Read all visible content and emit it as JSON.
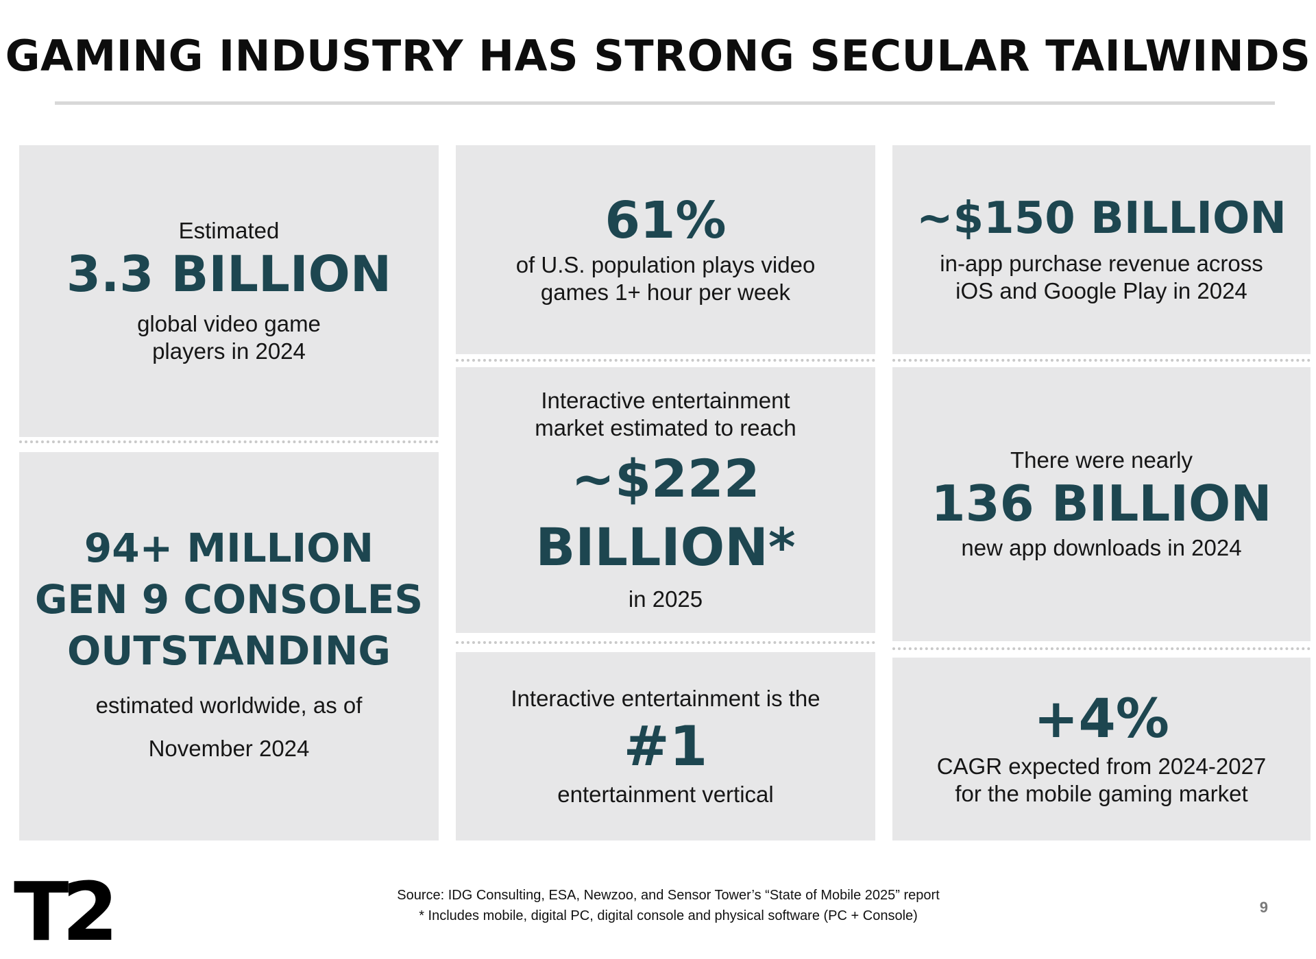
{
  "title": "GAMING INDUSTRY HAS STRONG SECULAR TAILWINDS",
  "tiles": {
    "players": {
      "pre": "Estimated",
      "stat": "3.3 BILLION",
      "post": "global video game\nplayers in 2024"
    },
    "consoles": {
      "stat": "94+ MILLION\nGEN 9 CONSOLES\nOUTSTANDING",
      "post": "estimated worldwide, as of\nNovember 2024"
    },
    "us_population": {
      "stat": "61%",
      "post": "of U.S. population plays video\ngames 1+ hour per week"
    },
    "market": {
      "pre": "Interactive entertainment\nmarket estimated to reach",
      "stat": "~$222\nBILLION*",
      "post": "in 2025"
    },
    "vertical": {
      "pre": "Interactive entertainment is the",
      "stat": "#1",
      "post": "entertainment vertical"
    },
    "iap": {
      "stat": "~$150 BILLION",
      "post": "in-app purchase revenue across\niOS and Google Play in 2024"
    },
    "downloads": {
      "pre": "There were nearly",
      "stat": "136 BILLION",
      "post": "new app downloads in 2024"
    },
    "cagr": {
      "stat": "+4%",
      "post": "CAGR expected from 2024-2027\nfor the mobile gaming market"
    }
  },
  "footer": {
    "source": "Source:  IDG Consulting, ESA, Newzoo, and Sensor Tower’s “State of Mobile 2025” report",
    "note": "*  Includes mobile, digital PC, digital console and physical software (PC + Console)"
  },
  "logo_text": "T2",
  "page_number": "9",
  "colors": {
    "stat": "#1d4650",
    "tile_bg": "#e7e7e8"
  }
}
